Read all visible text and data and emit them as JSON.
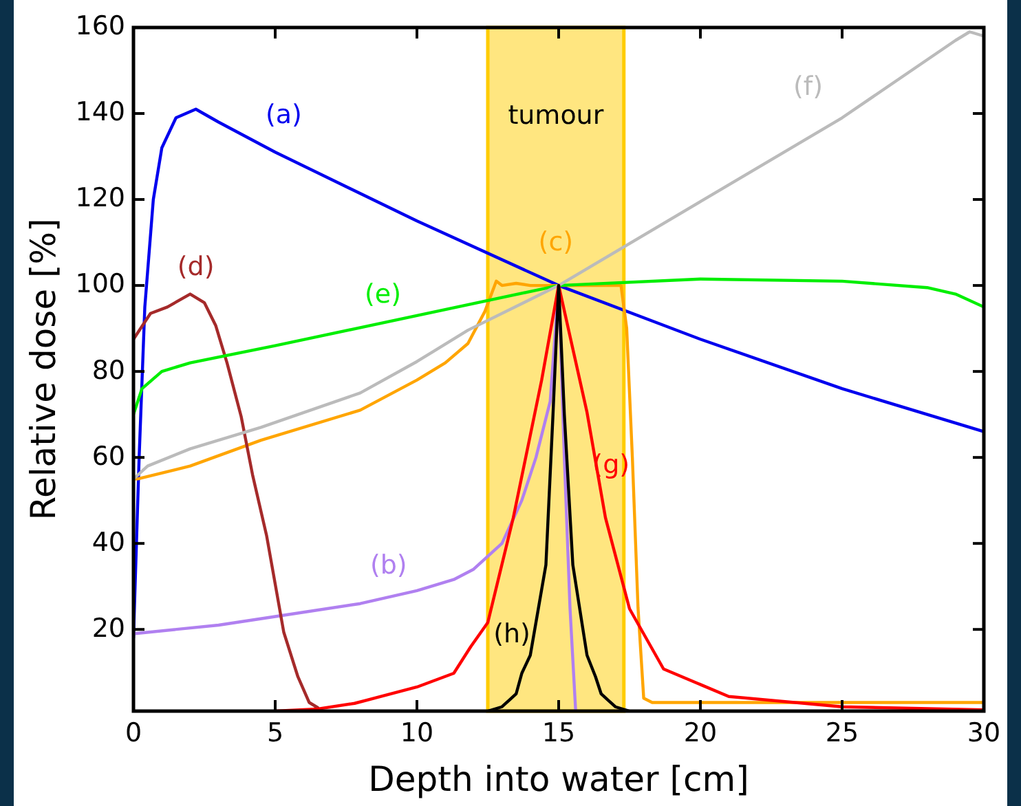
{
  "chart_data": {
    "type": "line",
    "xlabel": "Depth into water [cm]",
    "ylabel": "Relative dose [%]",
    "xlim": [
      0,
      30
    ],
    "ylim": [
      1,
      160
    ],
    "xticks": [
      0,
      5,
      10,
      15,
      20,
      25,
      30
    ],
    "yticks": [
      20,
      40,
      60,
      80,
      100,
      120,
      140,
      160
    ],
    "grid": false,
    "marker": "none",
    "line_style": "solid",
    "bands": [
      {
        "axis": "x",
        "from": 12.5,
        "to": 17.3,
        "label": "tumour",
        "color": "#ffe680"
      }
    ],
    "series": [
      {
        "name": "(a)",
        "color": "#0000ee",
        "x": [
          0,
          0.2,
          0.4,
          0.7,
          1,
          1.5,
          2.2,
          3,
          5,
          10,
          15,
          20,
          25,
          30
        ],
        "values": [
          18,
          60,
          95,
          120,
          132,
          139,
          141,
          138,
          131,
          115,
          100,
          87.5,
          76,
          66
        ]
      },
      {
        "name": "(b)",
        "color": "#b080f0",
        "x": [
          0,
          3,
          5,
          8,
          10,
          11.3,
          12,
          13,
          13.7,
          14.2,
          14.7,
          15,
          15.2,
          15.4,
          15.6
        ],
        "values": [
          19,
          21,
          23,
          26,
          29,
          31.6,
          34,
          40,
          50,
          60,
          73,
          100,
          60,
          25,
          1
        ]
      },
      {
        "name": "(c)",
        "color": "#ffa500",
        "x": [
          0,
          0.15,
          2,
          4.5,
          8,
          10,
          11,
          11.8,
          12.4,
          12.8,
          13,
          13.5,
          14,
          15,
          16,
          17.2,
          17.4,
          17.6,
          17.8,
          18,
          18.3,
          19,
          25,
          30
        ],
        "values": [
          55,
          55,
          58,
          64,
          71,
          78,
          82,
          86.5,
          94,
          101,
          100,
          100.5,
          100,
          100,
          100,
          100,
          90,
          60,
          25,
          4,
          3,
          3,
          3,
          3
        ]
      },
      {
        "name": "(d)",
        "color": "#a52a2a",
        "x": [
          0,
          0.6,
          1.2,
          2,
          2.5,
          2.9,
          3.3,
          3.8,
          4.2,
          4.7,
          5.3,
          5.8,
          6.2,
          6.5
        ],
        "values": [
          87.5,
          93.5,
          95,
          98,
          96,
          90.7,
          82,
          69.5,
          56,
          41.7,
          19.4,
          9,
          3,
          1.8
        ]
      },
      {
        "name": "(e)",
        "color": "#00ee00",
        "x": [
          0,
          0.3,
          1,
          2,
          5,
          10,
          15,
          20,
          25,
          28,
          29,
          30
        ],
        "values": [
          70,
          76,
          80,
          82,
          86,
          93,
          100,
          101.5,
          101,
          99.5,
          98,
          95
        ]
      },
      {
        "name": "(f)",
        "color": "#bbbbbb",
        "x": [
          0,
          0.5,
          2,
          4.5,
          8,
          10,
          11.8,
          15,
          20,
          25,
          29,
          29.5,
          30
        ],
        "values": [
          55,
          58,
          62,
          67,
          75,
          82.3,
          89.6,
          100,
          119.5,
          139,
          157,
          159,
          158
        ]
      },
      {
        "name": "(g)",
        "color": "#ff0000",
        "x": [
          5,
          6.5,
          7.8,
          10,
          11.3,
          11.9,
          12.5,
          13.4,
          14.4,
          15,
          16,
          16.65,
          17.5,
          18.7,
          21,
          25,
          30
        ],
        "values": [
          1,
          1.5,
          2.8,
          6.6,
          9.8,
          16,
          21.6,
          46,
          78,
          100,
          70.5,
          46,
          24.8,
          10.8,
          4.4,
          2,
          1.3
        ]
      },
      {
        "name": "(h)",
        "color": "#000000",
        "x": [
          12.5,
          13,
          13.5,
          13.7,
          14,
          14.55,
          14.8,
          15,
          15.2,
          15.5,
          16,
          16.3,
          16.5,
          17,
          17.5
        ],
        "values": [
          1,
          2,
          5,
          9.8,
          14,
          35,
          70,
          100,
          70,
          35,
          14,
          9,
          5,
          2,
          1
        ]
      }
    ]
  }
}
